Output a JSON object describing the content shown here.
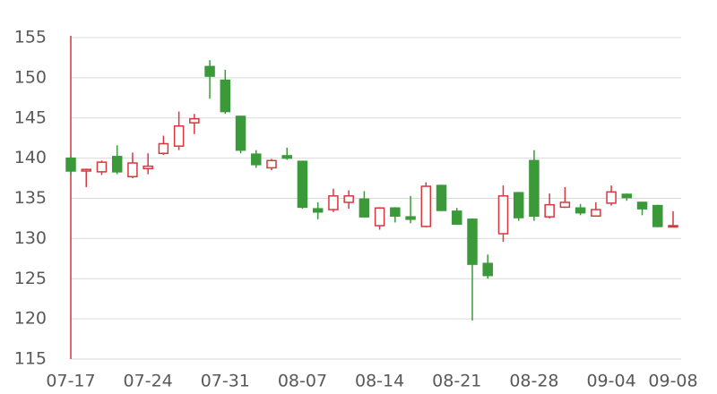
{
  "chart_data": {
    "type": "candlestick",
    "categories": [
      "07-17",
      null,
      null,
      null,
      null,
      "07-24",
      null,
      null,
      null,
      null,
      "07-31",
      null,
      null,
      null,
      null,
      "08-07",
      null,
      null,
      null,
      null,
      "08-14",
      null,
      null,
      null,
      null,
      "08-21",
      null,
      null,
      null,
      null,
      "08-28",
      null,
      null,
      null,
      null,
      "09-04",
      null,
      null,
      null,
      "09-08"
    ],
    "open": [
      140,
      138.4,
      138.3,
      140.2,
      137.7,
      138.7,
      140.6,
      141.5,
      144.4,
      151.4,
      149.7,
      145.2,
      140.5,
      138.8,
      140.3,
      139.6,
      133.7,
      133.6,
      134.5,
      134.9,
      131.6,
      133.8,
      132.7,
      131.5,
      136.6,
      133.4,
      132.4,
      126.9,
      130.6,
      135.7,
      139.7,
      132.7,
      133.9,
      133.8,
      132.8,
      134.4,
      135.5,
      134.5,
      134.1,
      131.5
    ],
    "high": [
      140.2,
      138.7,
      139.7,
      141.6,
      140.7,
      140.6,
      142.8,
      145.8,
      145.5,
      152.2,
      151,
      145.3,
      141,
      139.9,
      141.3,
      139.7,
      134.5,
      136.2,
      136,
      135.9,
      133.9,
      133.9,
      135.3,
      137,
      136.7,
      133.8,
      132.5,
      128,
      136.6,
      135.8,
      141,
      135.6,
      136.4,
      134.3,
      134.5,
      136.6,
      135.6,
      134.6,
      134.2,
      133.4
    ],
    "low": [
      137.9,
      136.4,
      137.9,
      138,
      137.5,
      138,
      140.4,
      141,
      143,
      147.4,
      145.5,
      140.6,
      138.8,
      138.5,
      139.8,
      133.7,
      132.4,
      133.3,
      133.7,
      132.6,
      131.1,
      132,
      131.9,
      131.4,
      133.4,
      131.7,
      119.8,
      125,
      129.6,
      132.2,
      132.2,
      132.5,
      133.8,
      132.9,
      132.7,
      134.1,
      134.7,
      132.9,
      131.4,
      131.4
    ],
    "close": [
      138.4,
      138.6,
      139.5,
      138.3,
      139.4,
      139,
      141.8,
      144,
      144.9,
      150.2,
      145.8,
      141,
      139.2,
      139.7,
      140,
      133.9,
      133.3,
      135.3,
      135.3,
      132.7,
      133.8,
      132.8,
      132.4,
      136.5,
      133.5,
      131.8,
      126.8,
      125.4,
      135.3,
      132.6,
      132.8,
      134.2,
      134.5,
      133.2,
      133.6,
      135.8,
      135.1,
      133.7,
      131.5,
      131.6
    ],
    "up_color": "#d9363e",
    "down_color": "#3a9a3a",
    "ylim": [
      115,
      155
    ],
    "yticks": [
      115,
      120,
      125,
      130,
      135,
      140,
      145,
      150,
      155
    ],
    "grid": true
  }
}
